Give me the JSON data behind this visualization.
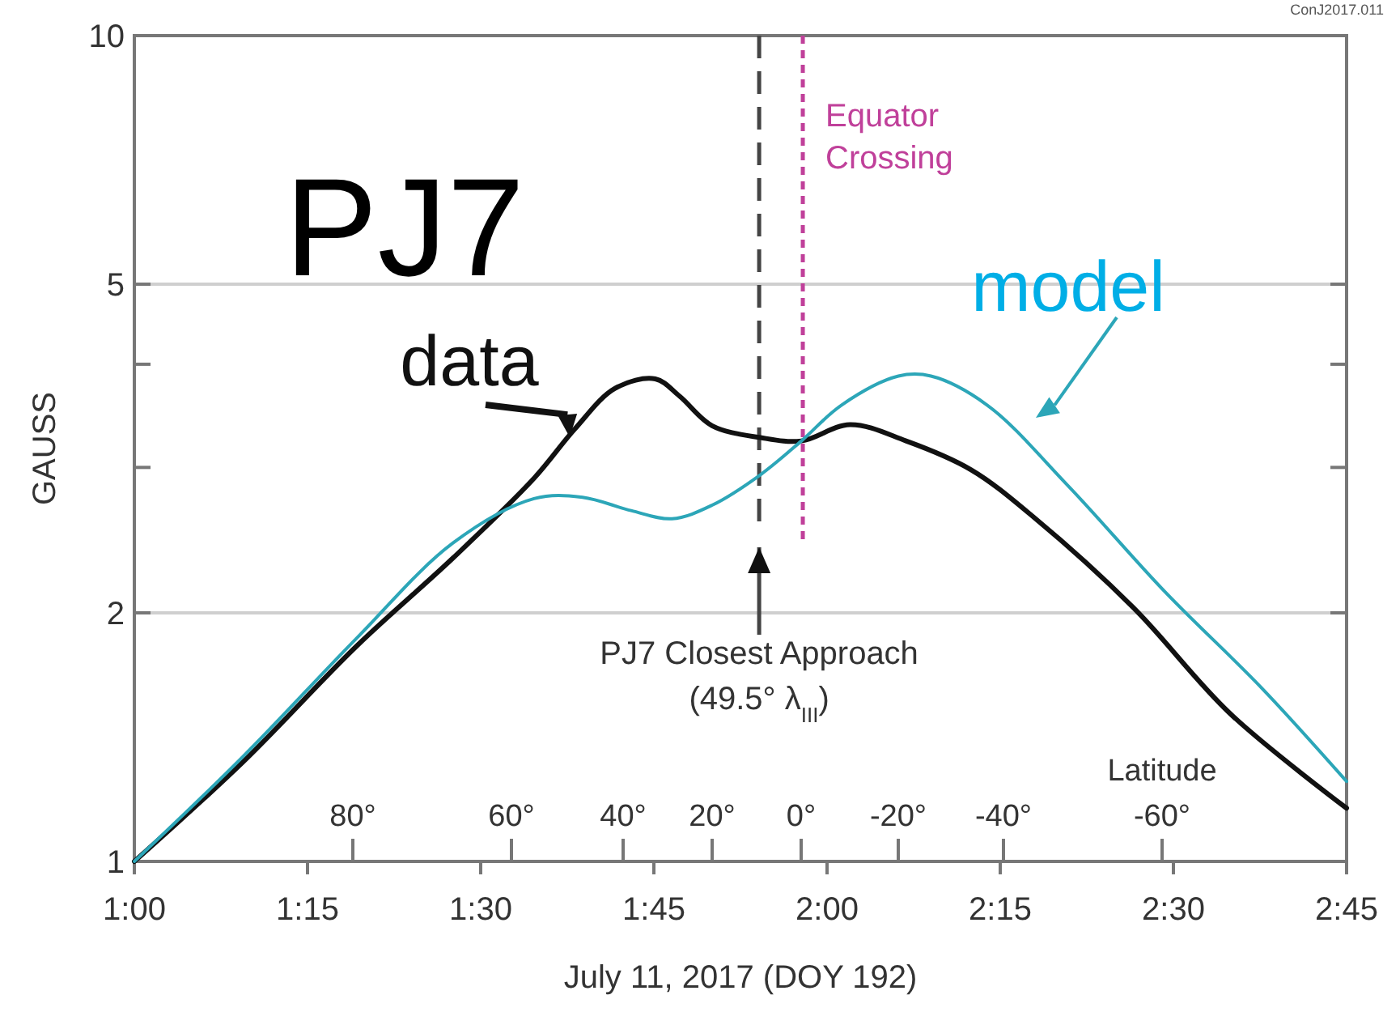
{
  "chart_data": {
    "type": "line",
    "xlabel": "July 11, 2017 (DOY 192)",
    "ylabel": "GAUSS",
    "log": "y",
    "grid": "y",
    "marker": "none",
    "line_style": "solid",
    "xlim": [
      1,
      2.75
    ],
    "xticks": [
      {
        "value": 1,
        "label": "1:00"
      },
      {
        "value": 1.25,
        "label": "1:15"
      },
      {
        "value": 1.5,
        "label": "1:30"
      },
      {
        "value": 1.75,
        "label": "1:45"
      },
      {
        "value": 2,
        "label": "2:00"
      },
      {
        "value": 2.25,
        "label": "2:15"
      },
      {
        "value": 2.5,
        "label": "2:30"
      },
      {
        "value": 2.75,
        "label": "2:45"
      }
    ],
    "ylim": [
      1,
      10
    ],
    "yticks": [
      1,
      2,
      {
        "value": 3,
        "label": null
      },
      {
        "value": 4,
        "label": null
      },
      5,
      10
    ],
    "series": [
      {
        "name": "data",
        "color": "#111111",
        "x": [
          1,
          1.157,
          1.32,
          1.46,
          1.577,
          1.636,
          1.694,
          1.752,
          1.787,
          1.834,
          1.904,
          1.963,
          2.033,
          2.114,
          2.208,
          2.301,
          2.442,
          2.582,
          2.75
        ],
        "values": [
          1,
          1.32,
          1.82,
          2.33,
          2.91,
          3.34,
          3.74,
          3.84,
          3.66,
          3.37,
          3.26,
          3.23,
          3.38,
          3.23,
          2.98,
          2.6,
          2.03,
          1.51,
          1.16
        ]
      },
      {
        "name": "model",
        "color": "#2ca6b8",
        "x": [
          1,
          1.157,
          1.32,
          1.46,
          1.577,
          1.647,
          1.717,
          1.776,
          1.834,
          1.904,
          1.963,
          2.021,
          2.103,
          2.15,
          2.231,
          2.348,
          2.488,
          2.628,
          2.75
        ],
        "values": [
          1,
          1.34,
          1.86,
          2.43,
          2.75,
          2.76,
          2.66,
          2.6,
          2.7,
          2.94,
          3.23,
          3.57,
          3.87,
          3.87,
          3.57,
          2.85,
          2.12,
          1.62,
          1.25
        ]
      }
    ],
    "ref_lines": [
      {
        "axis": "x",
        "value": 1.902,
        "label": "PJ7 Closest Approach\n(49.5° λ$_{III}$)",
        "color": "#444444",
        "line_style": "dashed"
      },
      {
        "axis": "x",
        "value": 1.965,
        "label": "Equator\nCrossing",
        "color": "#c0409a",
        "line_style": "dotted"
      }
    ],
    "annotations": [
      "PJ7",
      "ConJ2017.011",
      "Latitude",
      "80°",
      "60°",
      "40°",
      "20°",
      "0°",
      "-20°",
      "-40°",
      "-60°"
    ]
  }
}
